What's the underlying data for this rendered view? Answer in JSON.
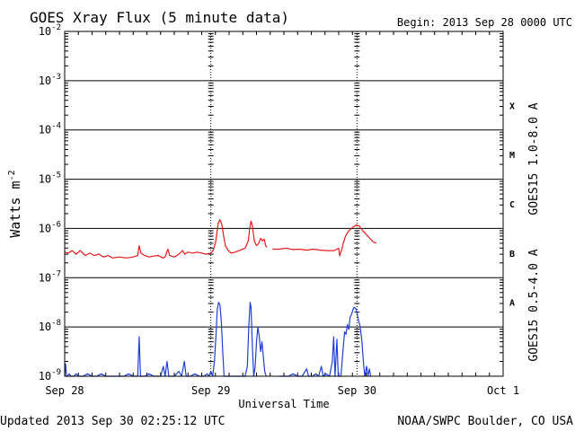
{
  "header": {
    "title": "GOES Xray Flux (5 minute data)",
    "begin": "Begin:  2013 Sep 28 0000 UTC"
  },
  "footer": {
    "updated": "Updated 2013 Sep 30 02:25:12 UTC",
    "credit": "NOAA/SWPC Boulder, CO USA"
  },
  "colors": {
    "long_series": "#e41a1c",
    "short_series": "#1f3fd6",
    "grid": "#000000"
  },
  "chart_data": {
    "type": "line",
    "xlabel": "Universal Time",
    "ylabel": "Watts m",
    "ylabel_superscript": "-2",
    "log_scale_y": true,
    "grid": true,
    "xlim": [
      0,
      96
    ],
    "x_units": "hours since 2013 Sep 28 0000 UTC",
    "ylim_exponent": [
      -9,
      -2
    ],
    "y_ticks": [
      {
        "base": "10",
        "exp": "-9"
      },
      {
        "base": "10",
        "exp": "-8"
      },
      {
        "base": "10",
        "exp": "-7"
      },
      {
        "base": "10",
        "exp": "-6"
      },
      {
        "base": "10",
        "exp": "-5"
      },
      {
        "base": "10",
        "exp": "-4"
      },
      {
        "base": "10",
        "exp": "-3"
      },
      {
        "base": "10",
        "exp": "-2"
      }
    ],
    "x_ticks": [
      {
        "label": "Sep 28",
        "hour": 0
      },
      {
        "label": "Sep 29",
        "hour": 32
      },
      {
        "label": "Sep 30",
        "hour": 64
      },
      {
        "label": "Oct 1",
        "hour": 96
      }
    ],
    "flare_classes": [
      {
        "label": "A",
        "exp": -7.5
      },
      {
        "label": "B",
        "exp": -6.5
      },
      {
        "label": "C",
        "exp": -5.5
      },
      {
        "label": "M",
        "exp": -4.5
      },
      {
        "label": "X",
        "exp": -3.5
      }
    ],
    "series": [
      {
        "name": "GOES15 1.0-8.0 A",
        "color": "#e41a1c",
        "points": [
          [
            0.0,
            -6.48
          ],
          [
            0.8,
            -6.5
          ],
          [
            1.6,
            -6.45
          ],
          [
            2.5,
            -6.52
          ],
          [
            3.4,
            -6.45
          ],
          [
            4.5,
            -6.55
          ],
          [
            5.5,
            -6.5
          ],
          [
            6.5,
            -6.55
          ],
          [
            7.5,
            -6.52
          ],
          [
            8.5,
            -6.58
          ],
          [
            9.5,
            -6.55
          ],
          [
            10.5,
            -6.6
          ],
          [
            12.0,
            -6.58
          ],
          [
            13.5,
            -6.6
          ],
          [
            15.0,
            -6.58
          ],
          [
            16.0,
            -6.55
          ],
          [
            16.3,
            -6.35
          ],
          [
            16.7,
            -6.5
          ],
          [
            17.5,
            -6.55
          ],
          [
            18.5,
            -6.58
          ],
          [
            19.5,
            -6.56
          ],
          [
            20.5,
            -6.55
          ],
          [
            21.5,
            -6.6
          ],
          [
            22.0,
            -6.58
          ],
          [
            22.6,
            -6.42
          ],
          [
            23.0,
            -6.55
          ],
          [
            24.0,
            -6.58
          ],
          [
            25.0,
            -6.52
          ],
          [
            25.8,
            -6.45
          ],
          [
            26.3,
            -6.52
          ],
          [
            27.0,
            -6.48
          ],
          [
            28.0,
            -6.5
          ],
          [
            29.0,
            -6.48
          ],
          [
            30.0,
            -6.5
          ],
          [
            31.0,
            -6.52
          ],
          [
            32.0,
            -6.5
          ],
          [
            32.5,
            -6.45
          ],
          [
            33.0,
            -6.3
          ],
          [
            33.3,
            -6.1
          ],
          [
            33.6,
            -5.9
          ],
          [
            34.0,
            -5.82
          ],
          [
            34.4,
            -5.92
          ],
          [
            34.8,
            -6.15
          ],
          [
            35.2,
            -6.35
          ],
          [
            35.8,
            -6.45
          ],
          [
            36.5,
            -6.5
          ],
          [
            37.3,
            -6.48
          ],
          [
            38.5,
            -6.44
          ],
          [
            39.5,
            -6.4
          ],
          [
            40.2,
            -6.25
          ],
          [
            40.5,
            -6.0
          ],
          [
            40.8,
            -5.85
          ],
          [
            41.1,
            -5.95
          ],
          [
            41.5,
            -6.25
          ],
          [
            42.0,
            -6.35
          ],
          [
            42.5,
            -6.3
          ],
          [
            42.9,
            -6.2
          ],
          [
            43.3,
            -6.25
          ],
          [
            43.7,
            -6.22
          ],
          [
            44.0,
            -6.35
          ],
          [
            44.3,
            -6.38
          ]
        ]
      },
      {
        "name": "GOES15 1.0-8.0 A",
        "color": "#e41a1c",
        "points": [
          [
            45.5,
            -6.42
          ],
          [
            47.0,
            -6.42
          ],
          [
            48.5,
            -6.4
          ],
          [
            50.0,
            -6.43
          ],
          [
            51.5,
            -6.42
          ],
          [
            53.0,
            -6.44
          ],
          [
            54.5,
            -6.42
          ],
          [
            56.0,
            -6.44
          ],
          [
            57.5,
            -6.45
          ],
          [
            59.0,
            -6.45
          ],
          [
            60.0,
            -6.4
          ],
          [
            60.2,
            -6.55
          ],
          [
            60.6,
            -6.45
          ],
          [
            61.0,
            -6.3
          ],
          [
            61.5,
            -6.15
          ],
          [
            62.2,
            -6.05
          ],
          [
            63.0,
            -5.98
          ],
          [
            63.8,
            -5.93
          ],
          [
            64.5,
            -5.95
          ],
          [
            65.3,
            -6.05
          ],
          [
            66.0,
            -6.12
          ],
          [
            66.8,
            -6.2
          ],
          [
            67.5,
            -6.27
          ],
          [
            68.2,
            -6.3
          ]
        ]
      },
      {
        "name": "GOES15 0.5-4.0 A",
        "color": "#1f3fd6",
        "points": [
          [
            0.0,
            -9.0
          ],
          [
            0.2,
            -8.75
          ],
          [
            0.4,
            -9.0
          ],
          [
            0.6,
            -9.0
          ],
          [
            1.0,
            -8.95
          ],
          [
            1.4,
            -9.0
          ],
          [
            2.0,
            -9.0
          ],
          [
            2.5,
            -8.95
          ],
          [
            3.0,
            -9.0
          ],
          [
            4.0,
            -9.0
          ],
          [
            5.0,
            -8.95
          ],
          [
            6.0,
            -9.0
          ],
          [
            7.0,
            -9.0
          ],
          [
            8.0,
            -8.95
          ],
          [
            9.0,
            -9.0
          ],
          [
            10.0,
            -9.0
          ],
          [
            11.0,
            -9.0
          ],
          [
            12.0,
            -9.0
          ],
          [
            13.0,
            -9.0
          ],
          [
            14.0,
            -8.95
          ],
          [
            15.0,
            -9.0
          ],
          [
            16.0,
            -9.0
          ],
          [
            16.3,
            -8.2
          ],
          [
            16.6,
            -9.0
          ],
          [
            17.5,
            -9.0
          ],
          [
            18.5,
            -8.95
          ],
          [
            19.5,
            -9.0
          ],
          [
            20.5,
            -9.0
          ],
          [
            21.0,
            -9.0
          ],
          [
            21.6,
            -8.8
          ],
          [
            22.0,
            -9.0
          ],
          [
            22.4,
            -8.7
          ],
          [
            22.8,
            -9.0
          ],
          [
            24.0,
            -9.0
          ],
          [
            25.0,
            -8.9
          ],
          [
            25.6,
            -9.0
          ],
          [
            26.2,
            -8.7
          ],
          [
            26.6,
            -9.0
          ],
          [
            27.5,
            -9.0
          ],
          [
            28.5,
            -8.95
          ],
          [
            29.5,
            -9.0
          ],
          [
            30.5,
            -9.0
          ],
          [
            31.2,
            -8.95
          ],
          [
            31.6,
            -9.0
          ],
          [
            32.0,
            -8.9
          ],
          [
            32.4,
            -9.0
          ],
          [
            32.8,
            -8.7
          ],
          [
            33.1,
            -8.2
          ],
          [
            33.4,
            -7.65
          ],
          [
            33.7,
            -7.5
          ],
          [
            34.0,
            -7.55
          ],
          [
            34.3,
            -7.9
          ],
          [
            34.6,
            -8.5
          ],
          [
            34.9,
            -9.0
          ],
          [
            35.5,
            -9.0
          ],
          [
            36.5,
            -9.0
          ],
          [
            37.5,
            -9.0
          ],
          [
            38.5,
            -9.0
          ],
          [
            39.5,
            -9.0
          ],
          [
            40.0,
            -8.8
          ],
          [
            40.3,
            -8.0
          ],
          [
            40.6,
            -7.5
          ],
          [
            40.8,
            -7.6
          ],
          [
            41.1,
            -8.4
          ],
          [
            41.4,
            -9.0
          ],
          [
            41.7,
            -8.8
          ],
          [
            42.0,
            -8.3
          ],
          [
            42.3,
            -8.0
          ],
          [
            42.6,
            -8.2
          ],
          [
            42.9,
            -8.5
          ],
          [
            43.2,
            -8.3
          ],
          [
            43.5,
            -8.6
          ],
          [
            43.8,
            -8.9
          ],
          [
            44.1,
            -9.0
          ]
        ]
      },
      {
        "name": "GOES15 0.5-4.0 A",
        "color": "#1f3fd6",
        "points": [
          [
            47.0,
            -9.0
          ],
          [
            48.0,
            -9.0
          ],
          [
            49.0,
            -9.0
          ],
          [
            50.0,
            -8.95
          ],
          [
            51.0,
            -9.0
          ],
          [
            52.0,
            -9.0
          ],
          [
            53.0,
            -8.85
          ],
          [
            53.4,
            -9.0
          ],
          [
            54.2,
            -9.0
          ],
          [
            55.0,
            -8.95
          ],
          [
            55.6,
            -9.0
          ],
          [
            56.2,
            -8.8
          ],
          [
            56.6,
            -9.0
          ],
          [
            57.2,
            -8.95
          ],
          [
            58.0,
            -9.0
          ],
          [
            58.6,
            -8.7
          ],
          [
            58.9,
            -8.2
          ],
          [
            59.2,
            -9.0
          ],
          [
            59.6,
            -8.25
          ],
          [
            59.9,
            -9.0
          ],
          [
            60.5,
            -9.0
          ],
          [
            61.0,
            -8.4
          ],
          [
            61.3,
            -8.1
          ],
          [
            61.6,
            -8.15
          ],
          [
            61.9,
            -7.95
          ],
          [
            62.2,
            -8.05
          ],
          [
            62.5,
            -7.8
          ],
          [
            62.8,
            -7.75
          ],
          [
            63.1,
            -7.65
          ],
          [
            63.4,
            -7.6
          ],
          [
            63.7,
            -7.62
          ],
          [
            64.0,
            -7.7
          ],
          [
            64.3,
            -7.85
          ],
          [
            64.7,
            -8.0
          ],
          [
            65.1,
            -8.3
          ],
          [
            65.4,
            -8.7
          ],
          [
            65.7,
            -9.0
          ],
          [
            66.1,
            -8.8
          ],
          [
            66.4,
            -9.0
          ],
          [
            66.7,
            -8.85
          ],
          [
            67.0,
            -9.0
          ]
        ]
      }
    ]
  }
}
